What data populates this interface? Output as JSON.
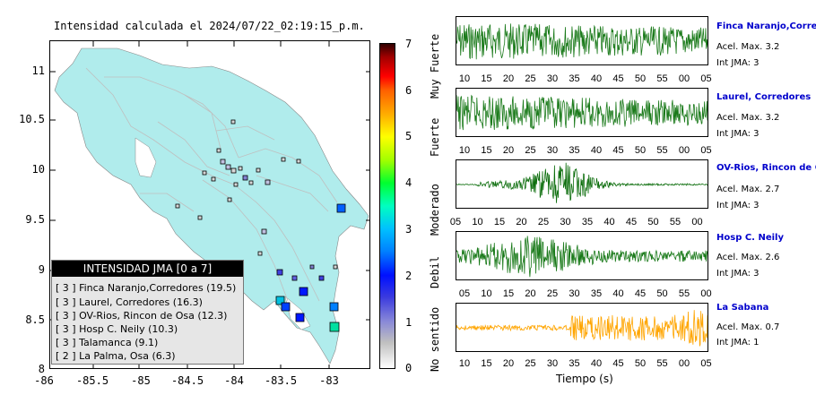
{
  "map": {
    "title": "Intensidad calculada el 2024/07/22_02:19:15_p.m.",
    "y_ticks": [
      "11",
      "10.5",
      "10",
      "9.5",
      "9",
      "8.5",
      "8"
    ],
    "x_ticks": [
      "-86",
      "-85.5",
      "-85",
      "-84.5",
      "-84",
      "-83.5",
      "-83"
    ],
    "land_color": "#b0ecec",
    "water_color": "#ffffff"
  },
  "colorbar": {
    "ticks": [
      "0",
      "1",
      "2",
      "3",
      "4",
      "5",
      "6",
      "7"
    ],
    "labels": [
      "No sentido",
      "Debil",
      "Moderado",
      "Fuerte",
      "Muy Fuerte"
    ]
  },
  "legend": {
    "title": "INTENSIDAD JMA [0 a 7]",
    "rows": [
      "[ 3 ] Finca Naranjo,Corredores (19.5)",
      "[ 3 ] Laurel, Corredores (16.3)",
      "[ 3 ] OV-Rios, Rincon de Osa (12.3)",
      "[ 3 ] Hosp C. Neily (10.3)",
      "[ 3 ] Talamanca (9.1)",
      "[ 2 ] La Palma, Osa (6.3)"
    ]
  },
  "traces": [
    {
      "name": "Finca Naranjo,Corredores",
      "acel": "Acel. Max. 3.2",
      "int": "Int JMA: 3",
      "color": "#1a7a1a",
      "ticks": [
        "10",
        "15",
        "20",
        "25",
        "30",
        "35",
        "40",
        "45",
        "50",
        "55",
        "00",
        "05"
      ]
    },
    {
      "name": "Laurel, Corredores",
      "acel": "Acel. Max. 3.2",
      "int": "Int JMA: 3",
      "color": "#1a7a1a",
      "ticks": [
        "10",
        "15",
        "20",
        "25",
        "30",
        "35",
        "40",
        "45",
        "50",
        "55",
        "00",
        "05"
      ]
    },
    {
      "name": "OV-Rios, Rincon de Osa",
      "acel": "Acel. Max. 2.7",
      "int": "Int JMA: 3",
      "color": "#0d6e0d",
      "ticks": [
        "05",
        "10",
        "15",
        "20",
        "25",
        "30",
        "35",
        "40",
        "45",
        "50",
        "55",
        "00"
      ]
    },
    {
      "name": "Hosp C. Neily",
      "acel": "Acel. Max. 2.6",
      "int": "Int JMA: 3",
      "color": "#1a7a1a",
      "ticks": [
        "05",
        "10",
        "15",
        "20",
        "25",
        "30",
        "35",
        "40",
        "45",
        "50",
        "55",
        "00"
      ]
    },
    {
      "name": "La Sabana",
      "acel": "Acel. Max. 0.7",
      "int": "Int JMA: 1",
      "color": "#ffa500",
      "ticks": [
        "10",
        "15",
        "20",
        "25",
        "30",
        "35",
        "40",
        "45",
        "50",
        "55",
        "00",
        "05"
      ]
    }
  ],
  "xaxis_label": "Tiempo (s)"
}
